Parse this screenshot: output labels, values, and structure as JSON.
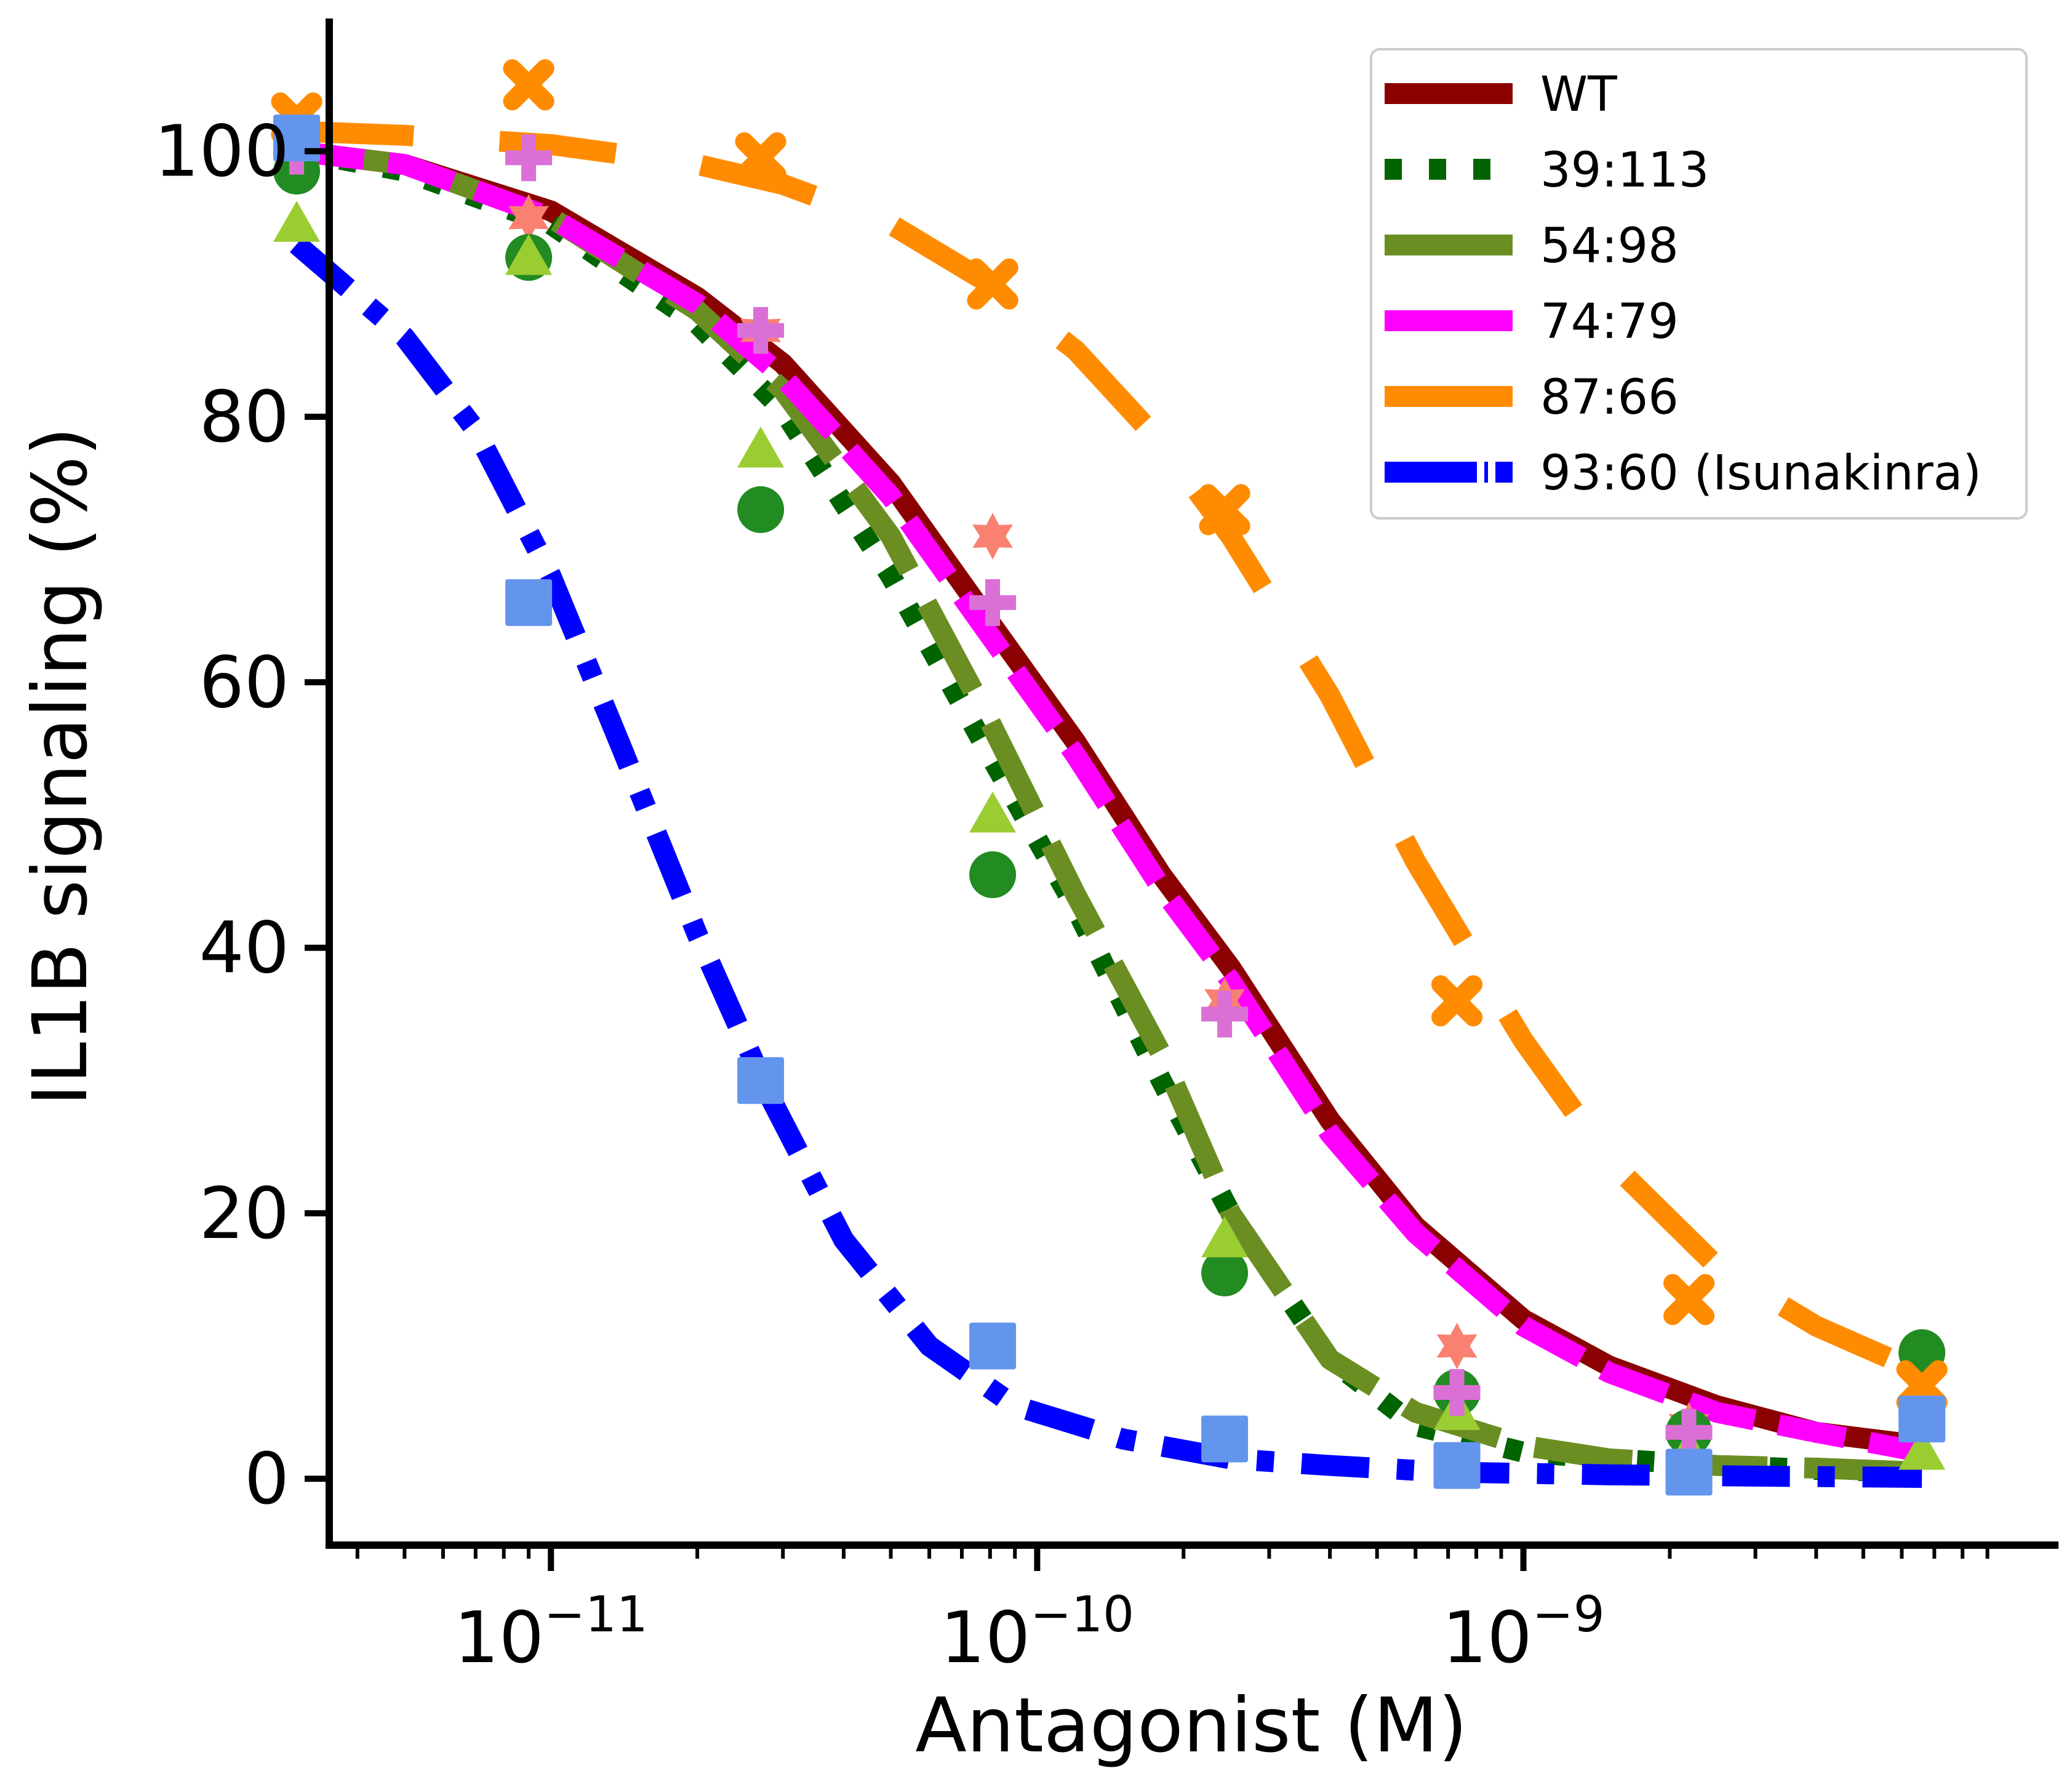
{
  "chart_data": {
    "type": "line",
    "xlabel": "Antagonist (M)",
    "ylabel": "IL1B signaling (%)",
    "x_scale": "log",
    "xlim": [
      3.5e-12,
      1.26e-08
    ],
    "ylim": [
      -5,
      110
    ],
    "x_ticks": [
      {
        "value": 1e-11,
        "base": "10",
        "exp": "−11"
      },
      {
        "value": 1e-10,
        "base": "10",
        "exp": "−10"
      },
      {
        "value": 1e-09,
        "base": "10",
        "exp": "−9"
      }
    ],
    "y_ticks": [
      0,
      20,
      40,
      60,
      80,
      100
    ],
    "legend_position": "top-right",
    "series": [
      {
        "name": "WT",
        "color": "#8b0000",
        "dash": "solid",
        "marker": "star",
        "marker_color": "#fa8072",
        "points": [
          [
            3e-12,
            100.5
          ],
          [
            9e-12,
            95.0
          ],
          [
            2.7e-11,
            86.5
          ],
          [
            8.1e-11,
            71.0
          ],
          [
            2.43e-10,
            36.0
          ],
          [
            7.3e-10,
            10.0
          ],
          [
            2.19e-09,
            4.0
          ],
          [
            6.6e-09,
            7.0
          ]
        ],
        "fit": [
          [
            3e-12,
            100.0
          ],
          [
            5e-12,
            99.0
          ],
          [
            1e-11,
            95.5
          ],
          [
            2e-11,
            89.0
          ],
          [
            3e-11,
            84.0
          ],
          [
            5e-11,
            75.0
          ],
          [
            8e-11,
            64.5
          ],
          [
            1.2e-10,
            55.5
          ],
          [
            1.8e-10,
            45.5
          ],
          [
            2.5e-10,
            38.5
          ],
          [
            4e-10,
            27.0
          ],
          [
            6e-10,
            19.0
          ],
          [
            1e-09,
            12.0
          ],
          [
            1.5e-09,
            8.5
          ],
          [
            2.5e-09,
            5.5
          ],
          [
            4e-09,
            3.5
          ],
          [
            6.6e-09,
            2.5
          ]
        ]
      },
      {
        "name": "39:113",
        "color": "#006400",
        "dash": "dotted",
        "marker": "circle",
        "marker_color": "#228b22",
        "points": [
          [
            3e-12,
            98.5
          ],
          [
            9e-12,
            92.0
          ],
          [
            2.7e-11,
            73.0
          ],
          [
            8.1e-11,
            45.5
          ],
          [
            2.43e-10,
            15.5
          ],
          [
            7.3e-10,
            6.5
          ],
          [
            2.19e-09,
            3.5
          ],
          [
            6.6e-09,
            9.5
          ]
        ],
        "fit": [
          [
            3e-12,
            100.0
          ],
          [
            5e-12,
            98.5
          ],
          [
            1e-11,
            94.5
          ],
          [
            2e-11,
            87.0
          ],
          [
            3e-11,
            80.5
          ],
          [
            5e-11,
            68.0
          ],
          [
            8e-11,
            54.5
          ],
          [
            1.2e-10,
            43.0
          ],
          [
            1.8e-10,
            30.0
          ],
          [
            2.5e-10,
            20.0
          ],
          [
            4e-10,
            9.0
          ],
          [
            6e-10,
            4.0
          ],
          [
            1e-09,
            2.0
          ],
          [
            1.5e-09,
            1.5
          ],
          [
            2.5e-09,
            1.0
          ],
          [
            4e-09,
            0.7
          ],
          [
            6.6e-09,
            0.5
          ]
        ]
      },
      {
        "name": "54:98",
        "color": "#6b8e23",
        "dash": "long-dash",
        "marker": "triangle",
        "marker_color": "#9acd32",
        "points": [
          [
            3e-12,
            94.5
          ],
          [
            9e-12,
            92.0
          ],
          [
            2.7e-11,
            77.5
          ],
          [
            8.1e-11,
            50.0
          ],
          [
            2.43e-10,
            18.0
          ],
          [
            7.3e-10,
            5.0
          ],
          [
            2.19e-09,
            2.0
          ],
          [
            6.6e-09,
            2.0
          ]
        ],
        "fit": [
          [
            3e-12,
            100.0
          ],
          [
            5e-12,
            99.0
          ],
          [
            1e-11,
            95.0
          ],
          [
            2e-11,
            88.0
          ],
          [
            3e-11,
            82.0
          ],
          [
            5e-11,
            71.0
          ],
          [
            8e-11,
            57.0
          ],
          [
            1.2e-10,
            44.0
          ],
          [
            1.8e-10,
            32.0
          ],
          [
            2.5e-10,
            20.0
          ],
          [
            4e-10,
            9.0
          ],
          [
            6e-10,
            5.0
          ],
          [
            1e-09,
            2.5
          ],
          [
            1.5e-09,
            1.5
          ],
          [
            2.5e-09,
            1.0
          ],
          [
            4e-09,
            0.8
          ],
          [
            6.6e-09,
            0.5
          ]
        ]
      },
      {
        "name": "74:79",
        "color": "#ff00ff",
        "dash": "dashed",
        "marker": "plus",
        "marker_color": "#da70d6",
        "points": [
          [
            3e-12,
            100.0
          ],
          [
            9e-12,
            99.5
          ],
          [
            2.7e-11,
            86.5
          ],
          [
            8.1e-11,
            66.0
          ],
          [
            2.43e-10,
            35.0
          ],
          [
            7.3e-10,
            6.5
          ],
          [
            2.19e-09,
            3.5
          ],
          [
            6.6e-09,
            5.0
          ]
        ],
        "fit": [
          [
            3e-12,
            100.0
          ],
          [
            5e-12,
            99.0
          ],
          [
            1e-11,
            95.0
          ],
          [
            2e-11,
            88.5
          ],
          [
            3e-11,
            83.0
          ],
          [
            5e-11,
            74.0
          ],
          [
            8e-11,
            63.5
          ],
          [
            1.2e-10,
            54.5
          ],
          [
            1.8e-10,
            44.5
          ],
          [
            2.5e-10,
            37.5
          ],
          [
            4e-10,
            26.0
          ],
          [
            6e-10,
            18.5
          ],
          [
            1e-09,
            11.5
          ],
          [
            1.5e-09,
            8.0
          ],
          [
            2.5e-09,
            5.0
          ],
          [
            4e-09,
            3.5
          ],
          [
            6.6e-09,
            2.0
          ]
        ]
      },
      {
        "name": "87:66",
        "color": "#ff8c00",
        "dash": "long-dash-gap",
        "marker": "x",
        "marker_color": "#ff8c00",
        "points": [
          [
            3e-12,
            102.5
          ],
          [
            9e-12,
            105.0
          ],
          [
            2.7e-11,
            99.5
          ],
          [
            8.1e-11,
            90.0
          ],
          [
            2.43e-10,
            73.0
          ],
          [
            7.3e-10,
            36.0
          ],
          [
            2.19e-09,
            13.5
          ],
          [
            6.6e-09,
            7.0
          ]
        ],
        "fit": [
          [
            3e-12,
            101.5
          ],
          [
            5e-12,
            101.2
          ],
          [
            1e-11,
            100.5
          ],
          [
            2e-11,
            99.0
          ],
          [
            3e-11,
            97.5
          ],
          [
            5e-11,
            94.5
          ],
          [
            8e-11,
            90.0
          ],
          [
            1.2e-10,
            85.0
          ],
          [
            1.8e-10,
            78.0
          ],
          [
            2.5e-10,
            71.0
          ],
          [
            4e-10,
            59.0
          ],
          [
            6e-10,
            46.5
          ],
          [
            1e-09,
            33.0
          ],
          [
            1.5e-09,
            24.0
          ],
          [
            2.5e-09,
            16.0
          ],
          [
            4e-09,
            11.5
          ],
          [
            6.6e-09,
            8.0
          ]
        ]
      },
      {
        "name": "93:60 (Isunakinra)",
        "color": "#0000ff",
        "dash": "dash-dot",
        "marker": "square",
        "marker_color": "#6495ed",
        "points": [
          [
            3e-12,
            101.0
          ],
          [
            9e-12,
            66.0
          ],
          [
            2.7e-11,
            30.0
          ],
          [
            8.1e-11,
            10.0
          ],
          [
            2.43e-10,
            3.0
          ],
          [
            7.3e-10,
            1.0
          ],
          [
            2.19e-09,
            0.5
          ],
          [
            6.6e-09,
            4.5
          ]
        ],
        "fit": [
          [
            3e-12,
            93.0
          ],
          [
            5e-12,
            86.0
          ],
          [
            7e-12,
            79.0
          ],
          [
            1e-11,
            68.0
          ],
          [
            1.4e-11,
            55.0
          ],
          [
            2e-11,
            41.0
          ],
          [
            2.8e-11,
            29.0
          ],
          [
            4e-11,
            18.0
          ],
          [
            6e-11,
            10.0
          ],
          [
            9e-11,
            5.5
          ],
          [
            1.5e-10,
            3.0
          ],
          [
            2.5e-10,
            1.5
          ],
          [
            4e-10,
            1.0
          ],
          [
            7e-10,
            0.5
          ],
          [
            1.5e-09,
            0.3
          ],
          [
            3e-09,
            0.2
          ],
          [
            6.6e-09,
            0.1
          ]
        ]
      }
    ]
  }
}
